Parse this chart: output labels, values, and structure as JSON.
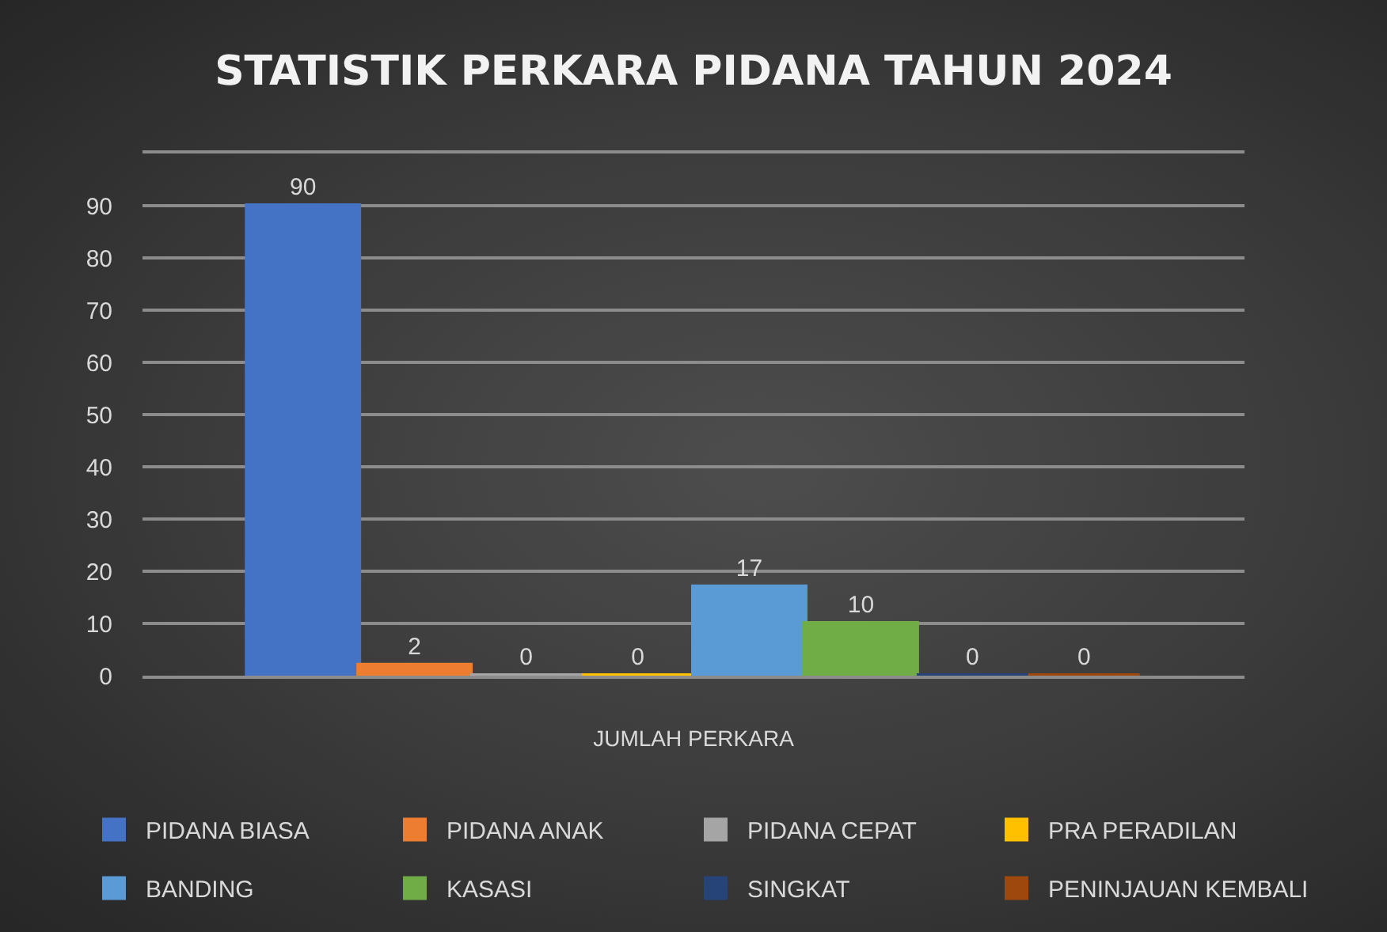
{
  "chart_data": {
    "type": "bar",
    "title": "STATISTIK PERKARA PIDANA TAHUN 2024",
    "categories": [
      "JUMLAH PERKARA"
    ],
    "series": [
      {
        "name": "PIDANA BIASA",
        "color": "#4472c4",
        "values": [
          90
        ]
      },
      {
        "name": "PIDANA ANAK",
        "color": "#ed7d31",
        "values": [
          2
        ]
      },
      {
        "name": "PIDANA CEPAT",
        "color": "#a5a5a5",
        "values": [
          0
        ]
      },
      {
        "name": "PRA PERADILAN",
        "color": "#ffc000",
        "values": [
          0
        ]
      },
      {
        "name": "BANDING",
        "color": "#5b9bd5",
        "values": [
          17
        ]
      },
      {
        "name": "KASASI",
        "color": "#70ad47",
        "values": [
          10
        ]
      },
      {
        "name": "SINGKAT",
        "color": "#264478",
        "values": [
          0
        ]
      },
      {
        "name": "PENINJAUAN KEMBALI",
        "color": "#9e480e",
        "values": [
          0
        ]
      }
    ],
    "ylim": [
      0,
      100
    ],
    "yticks": [
      0,
      10,
      20,
      30,
      40,
      50,
      60,
      70,
      80,
      90
    ],
    "grid": "y",
    "legend": "bottom",
    "data_labels": true
  }
}
